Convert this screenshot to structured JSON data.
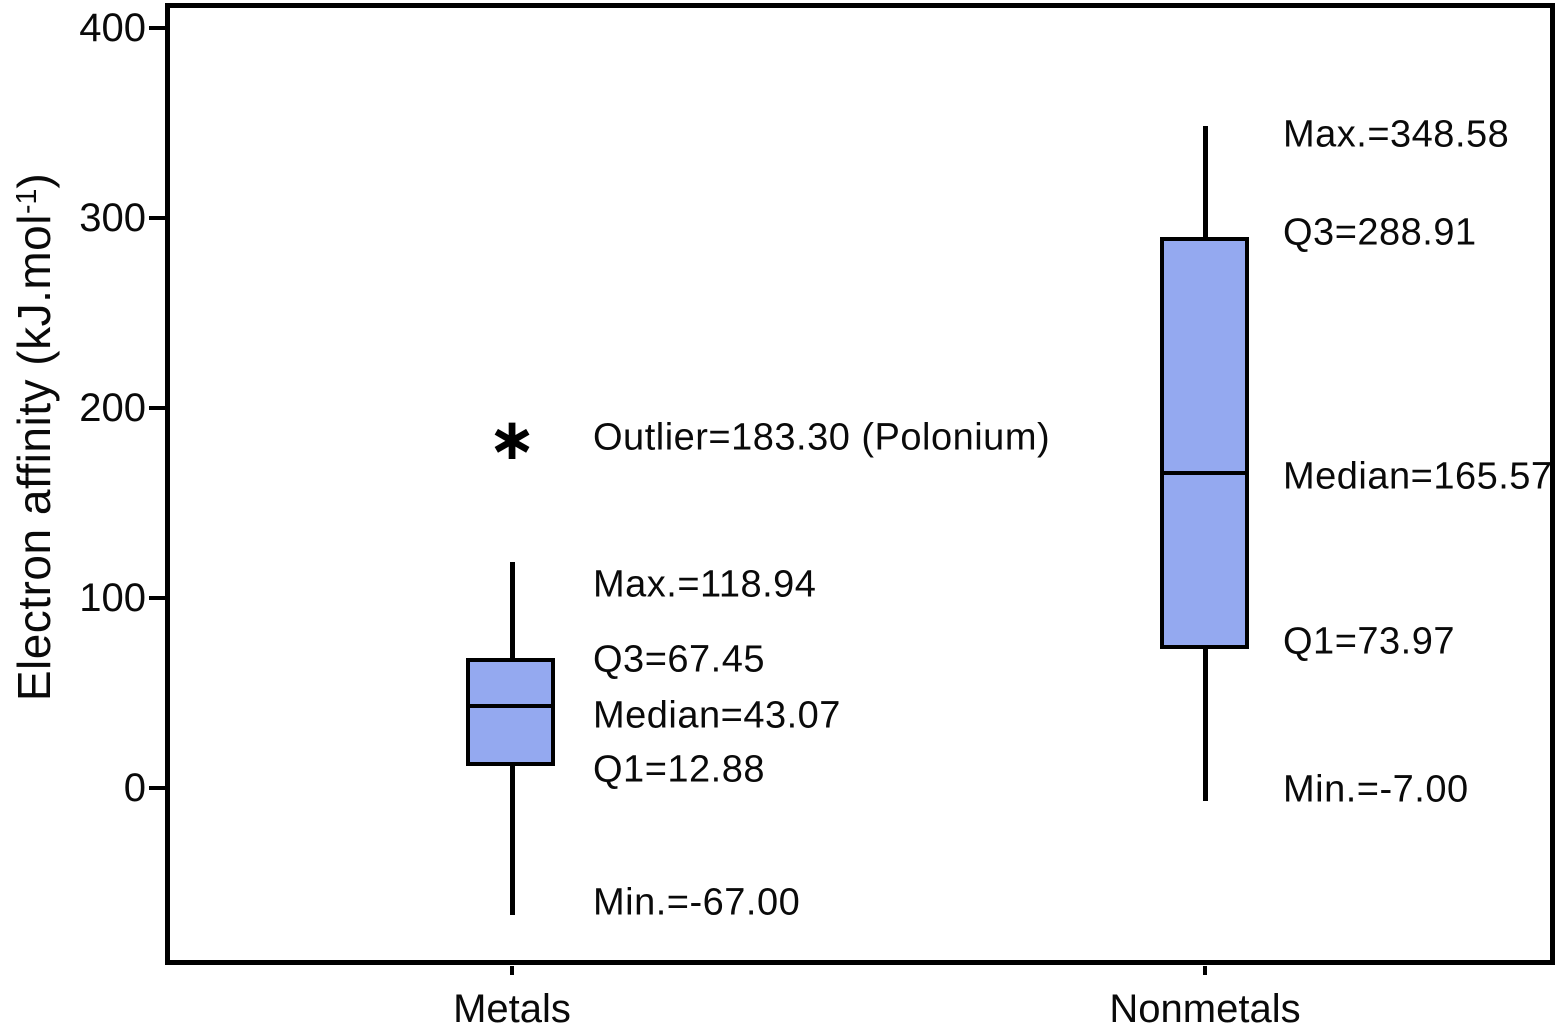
{
  "chart_data": {
    "type": "boxplot",
    "title": "",
    "xlabel": "",
    "ylabel_main": "Electron affinity (kJ.mol",
    "ylabel_sup": "-1",
    "ylabel_close": ")",
    "ylim": [
      -105,
      410
    ],
    "yticks": [
      400,
      300,
      200,
      100,
      0
    ],
    "grid": false,
    "legend": false,
    "categories": [
      "Metals",
      "Nonmetals"
    ],
    "series": [
      {
        "key": "metals",
        "name": "Metals",
        "min": -67.0,
        "q1": 12.88,
        "median": 43.07,
        "q3": 67.45,
        "max": 118.94,
        "outliers": [
          {
            "value": 183.3,
            "label": "Polonium"
          }
        ]
      },
      {
        "key": "nonmetals",
        "name": "Nonmetals",
        "min": -7.0,
        "q1": 73.97,
        "median": 165.57,
        "q3": 288.91,
        "max": 348.58,
        "outliers": []
      }
    ],
    "annotations": {
      "metals": {
        "outlier": "Outlier=183.30 (Polonium)",
        "max": "Max.=118.94",
        "q3": "Q3=67.45",
        "median": "Median=43.07",
        "q1": "Q1=12.88",
        "min": "Min.=-67.00"
      },
      "nonmetals": {
        "max": "Max.=348.58",
        "q3": "Q3=288.91",
        "median": "Median=165.57",
        "q1": "Q1=73.97",
        "min": "Min.=-7.00"
      }
    },
    "outlier_marker_glyph": "∗",
    "colors": {
      "box_fill": "#94a9f0",
      "line": "#000000",
      "background": "#ffffff"
    }
  }
}
